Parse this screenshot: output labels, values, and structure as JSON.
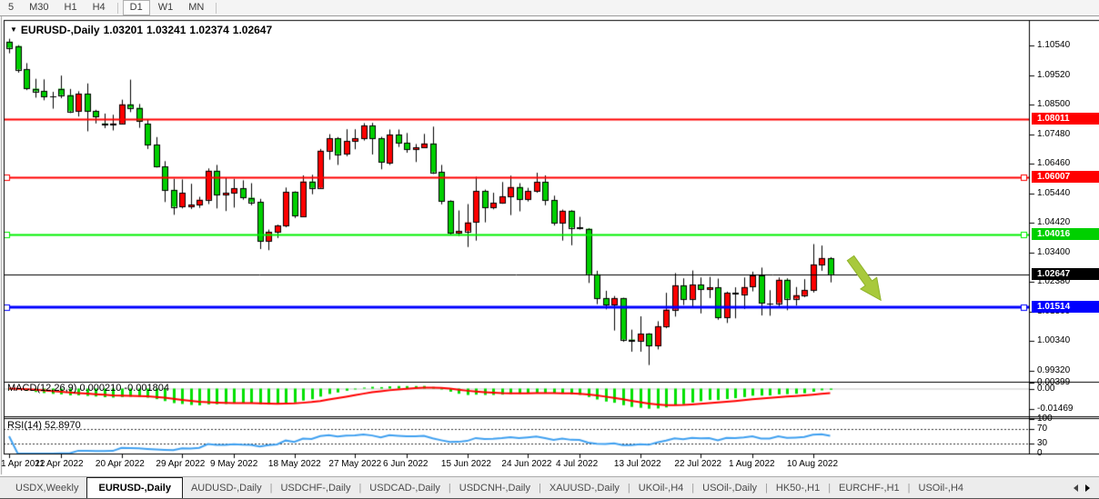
{
  "toolbar": {
    "timeframes": [
      "5",
      "M30",
      "H1",
      "H4",
      "D1",
      "W1",
      "MN"
    ],
    "active": "D1",
    "separators_after": [
      3,
      6
    ]
  },
  "title": {
    "symbol_period": "EURUSD-,Daily",
    "open": "1.03201",
    "high": "1.03241",
    "low": "1.02374",
    "close": "1.02647"
  },
  "colors": {
    "bull_candle": "#ff0000",
    "bear_candle": "#00d000",
    "wick": "#000000",
    "hline_red": "#ff0000",
    "hline_green": "#00ef00",
    "hline_blue": "#0000ff",
    "price_line": "#000000",
    "macd_bar": "#00e000",
    "macd_signal": "#ff0000",
    "rsi_line": "#3fa0f0",
    "arrow": "#a8c93c",
    "arrow_outline": "#8fb32a"
  },
  "chart_data": {
    "type": "candlestick",
    "symbol": "EURUSD",
    "period": "Daily",
    "dates": [
      "2022-04-01",
      "2022-04-04",
      "2022-04-05",
      "2022-04-06",
      "2022-04-07",
      "2022-04-08",
      "2022-04-11",
      "2022-04-12",
      "2022-04-13",
      "2022-04-14",
      "2022-04-15",
      "2022-04-18",
      "2022-04-19",
      "2022-04-20",
      "2022-04-21",
      "2022-04-22",
      "2022-04-25",
      "2022-04-26",
      "2022-04-27",
      "2022-04-28",
      "2022-04-29",
      "2022-05-02",
      "2022-05-03",
      "2022-05-04",
      "2022-05-05",
      "2022-05-06",
      "2022-05-09",
      "2022-05-10",
      "2022-05-11",
      "2022-05-12",
      "2022-05-13",
      "2022-05-16",
      "2022-05-17",
      "2022-05-18",
      "2022-05-19",
      "2022-05-20",
      "2022-05-23",
      "2022-05-24",
      "2022-05-25",
      "2022-05-26",
      "2022-05-27",
      "2022-05-30",
      "2022-05-31",
      "2022-06-01",
      "2022-06-02",
      "2022-06-03",
      "2022-06-06",
      "2022-06-07",
      "2022-06-08",
      "2022-06-09",
      "2022-06-10",
      "2022-06-13",
      "2022-06-14",
      "2022-06-15",
      "2022-06-16",
      "2022-06-17",
      "2022-06-20",
      "2022-06-21",
      "2022-06-22",
      "2022-06-23",
      "2022-06-24",
      "2022-06-27",
      "2022-06-28",
      "2022-06-29",
      "2022-06-30",
      "2022-07-01",
      "2022-07-04",
      "2022-07-05",
      "2022-07-06",
      "2022-07-07",
      "2022-07-08",
      "2022-07-11",
      "2022-07-12",
      "2022-07-13",
      "2022-07-14",
      "2022-07-15",
      "2022-07-18",
      "2022-07-19",
      "2022-07-20",
      "2022-07-21",
      "2022-07-22",
      "2022-07-25",
      "2022-07-26",
      "2022-07-27",
      "2022-07-28",
      "2022-07-29",
      "2022-08-01",
      "2022-08-02",
      "2022-08-03",
      "2022-08-04",
      "2022-08-05",
      "2022-08-08",
      "2022-08-09",
      "2022-08-10",
      "2022-08-11",
      "2022-08-12"
    ],
    "candles": [
      [
        1.1067,
        1.1077,
        1.1027,
        1.1046
      ],
      [
        1.1052,
        1.1055,
        1.096,
        1.0971
      ],
      [
        1.0971,
        1.0993,
        1.09,
        1.0905
      ],
      [
        1.0905,
        1.0939,
        1.0874,
        1.0896
      ],
      [
        1.0896,
        1.0937,
        1.0865,
        1.0878
      ],
      [
        1.0878,
        1.0894,
        1.0836,
        1.0876
      ],
      [
        1.0905,
        1.095,
        1.0872,
        1.0883
      ],
      [
        1.0883,
        1.0904,
        1.0821,
        1.0827
      ],
      [
        1.0827,
        1.0896,
        1.0809,
        1.0887
      ],
      [
        1.0887,
        1.0923,
        1.0758,
        1.0827
      ],
      [
        1.0827,
        1.0832,
        1.0785,
        1.0808
      ],
      [
        1.0785,
        1.0819,
        1.0769,
        1.0781
      ],
      [
        1.0781,
        1.0815,
        1.0761,
        1.0785
      ],
      [
        1.0785,
        1.0867,
        1.0783,
        1.0851
      ],
      [
        1.0851,
        1.0936,
        1.0824,
        1.0839
      ],
      [
        1.0839,
        1.0852,
        1.077,
        1.0794
      ],
      [
        1.0784,
        1.0798,
        1.0697,
        1.0712
      ],
      [
        1.0712,
        1.0738,
        1.0633,
        1.0637
      ],
      [
        1.0637,
        1.0655,
        1.0514,
        1.0556
      ],
      [
        1.0556,
        1.0594,
        1.047,
        1.0498
      ],
      [
        1.0498,
        1.0592,
        1.0492,
        1.0545
      ],
      [
        1.0498,
        1.0577,
        1.049,
        1.0505
      ],
      [
        1.0505,
        1.0532,
        1.0494,
        1.0522
      ],
      [
        1.0522,
        1.063,
        1.0507,
        1.0622
      ],
      [
        1.0622,
        1.0642,
        1.0492,
        1.054
      ],
      [
        1.054,
        1.0599,
        1.0483,
        1.0545
      ],
      [
        1.0545,
        1.0594,
        1.0495,
        1.0561
      ],
      [
        1.0561,
        1.0589,
        1.0522,
        1.0529
      ],
      [
        1.0529,
        1.0579,
        1.0503,
        1.0514
      ],
      [
        1.0514,
        1.0525,
        1.0352,
        1.0379
      ],
      [
        1.0379,
        1.0419,
        1.0348,
        1.0411
      ],
      [
        1.0411,
        1.0436,
        1.039,
        1.0433
      ],
      [
        1.0433,
        1.0564,
        1.0427,
        1.0548
      ],
      [
        1.0548,
        1.0551,
        1.0459,
        1.0465
      ],
      [
        1.0465,
        1.0606,
        1.0463,
        1.0585
      ],
      [
        1.0585,
        1.0608,
        1.0541,
        1.0563
      ],
      [
        1.0563,
        1.0697,
        1.0562,
        1.0691
      ],
      [
        1.0691,
        1.0748,
        1.066,
        1.0734
      ],
      [
        1.0734,
        1.0738,
        1.0642,
        1.0679
      ],
      [
        1.0679,
        1.0765,
        1.0672,
        1.0724
      ],
      [
        1.0724,
        1.0765,
        1.0696,
        1.0733
      ],
      [
        1.0733,
        1.0786,
        1.0726,
        1.0777
      ],
      [
        1.0777,
        1.0787,
        1.0678,
        1.0733
      ],
      [
        1.0733,
        1.0739,
        1.0627,
        1.065
      ],
      [
        1.065,
        1.0764,
        1.0642,
        1.0747
      ],
      [
        1.0747,
        1.0764,
        1.0704,
        1.0718
      ],
      [
        1.0718,
        1.0752,
        1.0684,
        1.0697
      ],
      [
        1.0697,
        1.0714,
        1.0652,
        1.0703
      ],
      [
        1.0703,
        1.0749,
        1.0701,
        1.0716
      ],
      [
        1.0716,
        1.0774,
        1.0611,
        1.0617
      ],
      [
        1.0617,
        1.0642,
        1.0506,
        1.0518
      ],
      [
        1.0518,
        1.052,
        1.0399,
        1.0408
      ],
      [
        1.0408,
        1.0485,
        1.0397,
        1.0414
      ],
      [
        1.0414,
        1.0507,
        1.0359,
        1.0444
      ],
      [
        1.0444,
        1.0601,
        1.0381,
        1.0551
      ],
      [
        1.0551,
        1.0557,
        1.0444,
        1.0495
      ],
      [
        1.0495,
        1.0546,
        1.0489,
        1.0511
      ],
      [
        1.0511,
        1.0583,
        1.0508,
        1.0534
      ],
      [
        1.0534,
        1.0605,
        1.0469,
        1.0566
      ],
      [
        1.0566,
        1.0579,
        1.0482,
        1.0524
      ],
      [
        1.0524,
        1.0563,
        1.0516,
        1.0552
      ],
      [
        1.0552,
        1.0615,
        1.0546,
        1.0583
      ],
      [
        1.0583,
        1.0606,
        1.0503,
        1.0521
      ],
      [
        1.0521,
        1.0536,
        1.0433,
        1.0442
      ],
      [
        1.0442,
        1.0488,
        1.0381,
        1.0484
      ],
      [
        1.0484,
        1.0486,
        1.0365,
        1.0426
      ],
      [
        1.0426,
        1.0463,
        1.0419,
        1.0422
      ],
      [
        1.0422,
        1.0424,
        1.0235,
        1.0265
      ],
      [
        1.0265,
        1.0277,
        1.0162,
        1.0183
      ],
      [
        1.0183,
        1.0208,
        1.0144,
        1.016
      ],
      [
        1.016,
        1.019,
        1.0071,
        1.0183
      ],
      [
        1.0183,
        1.0184,
        1.0032,
        1.004
      ],
      [
        1.004,
        1.0074,
        0.9998,
        1.0036
      ],
      [
        1.0036,
        1.012,
        0.9998,
        1.006
      ],
      [
        1.006,
        1.0062,
        0.9952,
        1.0019
      ],
      [
        1.0019,
        1.0103,
        1.0006,
        1.0086
      ],
      [
        1.0086,
        1.0201,
        1.0079,
        1.0143
      ],
      [
        1.0143,
        1.0269,
        1.0119,
        1.0227
      ],
      [
        1.0227,
        1.0251,
        1.0159,
        1.018
      ],
      [
        1.018,
        1.0278,
        1.0153,
        1.0229
      ],
      [
        1.0229,
        1.0254,
        1.013,
        1.0213
      ],
      [
        1.0213,
        1.0256,
        1.0183,
        1.0219
      ],
      [
        1.0219,
        1.025,
        1.0108,
        1.0115
      ],
      [
        1.0115,
        1.0205,
        1.0097,
        1.02
      ],
      [
        1.02,
        1.022,
        1.0113,
        1.0196
      ],
      [
        1.0196,
        1.0254,
        1.0145,
        1.0221
      ],
      [
        1.0221,
        1.0274,
        1.0206,
        1.026
      ],
      [
        1.026,
        1.0288,
        1.0123,
        1.0165
      ],
      [
        1.0165,
        1.021,
        1.0122,
        1.0166
      ],
      [
        1.0166,
        1.0254,
        1.0152,
        1.0246
      ],
      [
        1.0246,
        1.0251,
        1.0141,
        1.0181
      ],
      [
        1.0181,
        1.0221,
        1.0157,
        1.0193
      ],
      [
        1.0193,
        1.0248,
        1.0186,
        1.0211
      ],
      [
        1.0211,
        1.0369,
        1.0202,
        1.0299
      ],
      [
        1.0299,
        1.0364,
        1.0277,
        1.0321
      ],
      [
        1.032,
        1.0324,
        1.0237,
        1.0265
      ]
    ],
    "x_ticks": [
      {
        "label": "1 Apr 2022",
        "index": 0
      },
      {
        "label": "11 Apr 2022",
        "index": 6
      },
      {
        "label": "20 Apr 2022",
        "index": 13
      },
      {
        "label": "29 Apr 2022",
        "index": 20
      },
      {
        "label": "9 May 2022",
        "index": 26
      },
      {
        "label": "18 May 2022",
        "index": 33
      },
      {
        "label": "27 May 2022",
        "index": 40
      },
      {
        "label": "6 Jun 2022",
        "index": 46
      },
      {
        "label": "15 Jun 2022",
        "index": 53
      },
      {
        "label": "24 Jun 2022",
        "index": 60
      },
      {
        "label": "4 Jul 2022",
        "index": 66
      },
      {
        "label": "13 Jul 2022",
        "index": 73
      },
      {
        "label": "22 Jul 2022",
        "index": 80
      },
      {
        "label": "1 Aug 2022",
        "index": 86
      },
      {
        "label": "10 Aug 2022",
        "index": 93
      }
    ],
    "y_ticks": [
      "1.10540",
      "1.09520",
      "1.08500",
      "1.07480",
      "1.06460",
      "1.05440",
      "1.04420",
      "1.03400",
      "1.02380",
      "1.01360",
      "1.00340",
      "0.99320"
    ],
    "horizontal_lines": [
      {
        "price": 1.08011,
        "label": "1.08011",
        "color": "#ff0000",
        "width": 2,
        "handles": false
      },
      {
        "price": 1.06007,
        "label": "1.06007",
        "color": "#ff0000",
        "width": 2,
        "handles": true
      },
      {
        "price": 1.04016,
        "label": "1.04016",
        "color": "#00ef00",
        "width": 2,
        "handles": true
      },
      {
        "price": 1.01514,
        "label": "1.01514",
        "color": "#0000ff",
        "width": 3,
        "handles": true
      }
    ],
    "current_price": {
      "price": 1.02647,
      "label": "1.02647",
      "color": "#000000"
    },
    "indicators": [
      {
        "name": "MACD",
        "label": "MACD(12,26,9)",
        "readout": "0.000210 -0.001804",
        "axis_labels": [
          {
            "text": "0.00399",
            "value": 0.00399
          },
          {
            "text": "0.00",
            "value": 0
          },
          {
            "text": "-0.01469",
            "value": -0.01469
          }
        ]
      },
      {
        "name": "RSI",
        "label": "RSI(14)",
        "readout": "52.8970",
        "axis_labels": [
          {
            "text": "100",
            "value": 100
          },
          {
            "text": "70",
            "value": 70
          },
          {
            "text": "30",
            "value": 30
          },
          {
            "text": "0",
            "value": 0
          }
        ],
        "dashed_levels": [
          70,
          30
        ]
      }
    ]
  },
  "annotation_arrow": {
    "direction": "down-right",
    "color": "#a8c93c",
    "outline": "#8fb32a"
  },
  "tabbar": {
    "items": [
      "USDX,Weekly",
      "EURUSD-,Daily",
      "AUDUSD-,Daily",
      "USDCHF-,Daily",
      "USDCAD-,Daily",
      "USDCNH-,Daily",
      "XAUUSD-,Daily",
      "UKOil-,H4",
      "USOil-,Daily",
      "HK50-,H1",
      "EURCHF-,H1",
      "USOil-,H4"
    ],
    "active": "EURUSD-,Daily"
  }
}
